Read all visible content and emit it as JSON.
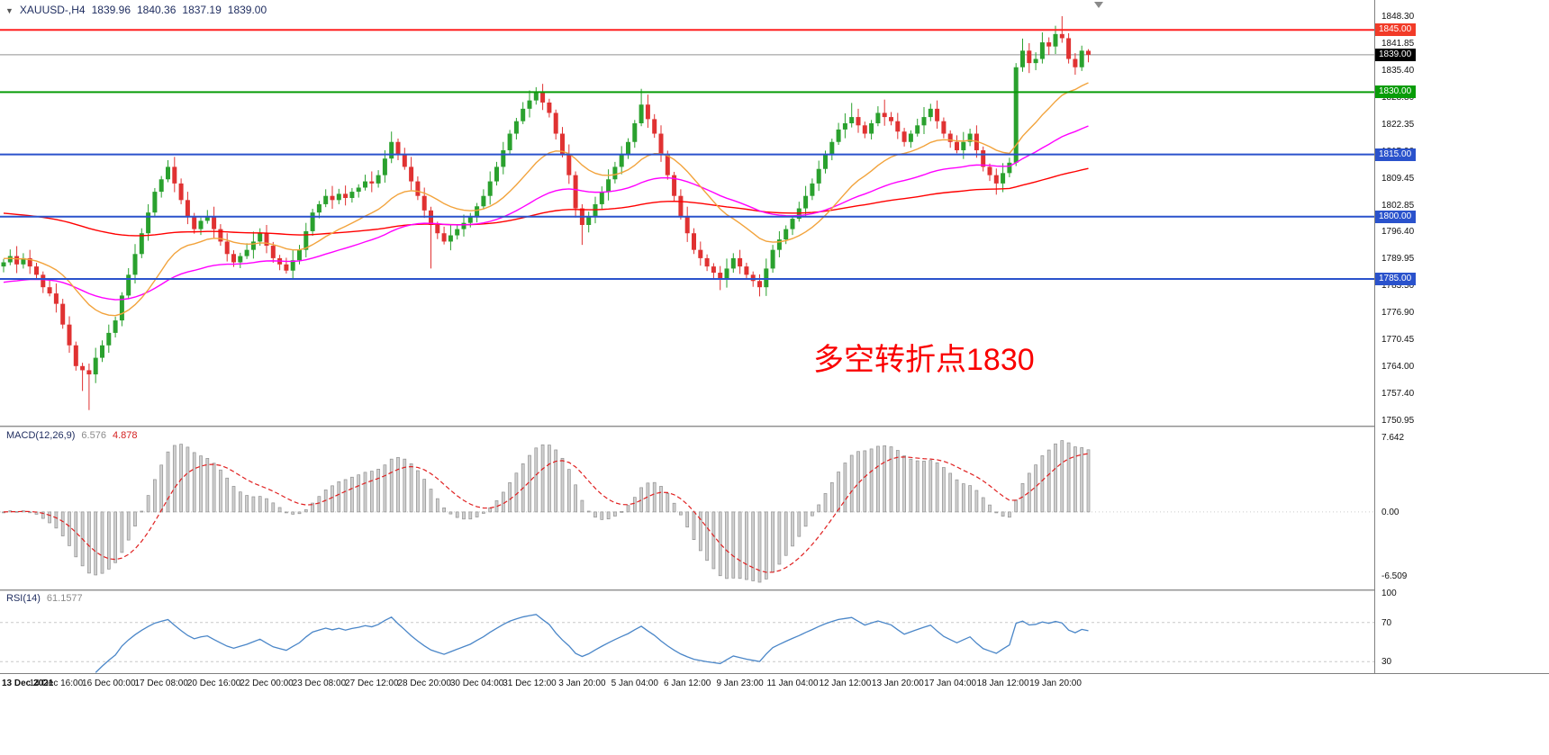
{
  "title": {
    "marker": "▼",
    "symbol": "XAUUSD-,H4",
    "open": "1839.96",
    "high": "1840.36",
    "low": "1837.19",
    "close": "1839.00"
  },
  "annotation": {
    "text": "多空转折点1830",
    "color": "#fa0000"
  },
  "current_price": {
    "value": 1839.0,
    "label": "1839.00",
    "badge_color": "#000000",
    "line_color": "#909090"
  },
  "levels": [
    {
      "price": 1845.0,
      "label": "1845.00",
      "line_color": "#ff2020",
      "badge_color": "#f23b28",
      "width": 2
    },
    {
      "price": 1830.0,
      "label": "1830.00",
      "line_color": "#089c08",
      "badge_color": "#089c08",
      "width": 2
    },
    {
      "price": 1815.0,
      "label": "1815.00",
      "line_color": "#2a52cc",
      "badge_color": "#2a52cc",
      "width": 2
    },
    {
      "price": 1800.0,
      "label": "1800.00",
      "line_color": "#2a52cc",
      "badge_color": "#2a52cc",
      "width": 2
    },
    {
      "price": 1785.0,
      "label": "1785.00",
      "line_color": "#2a52cc",
      "badge_color": "#2a52cc",
      "width": 2
    }
  ],
  "price_axis": {
    "ticks": [
      "1848.30",
      "1841.85",
      "1835.40",
      "1828.80",
      "1822.35",
      "1815.90",
      "1809.45",
      "1802.85",
      "1796.40",
      "1789.95",
      "1783.50",
      "1776.90",
      "1770.45",
      "1764.00",
      "1757.40",
      "1750.95"
    ]
  },
  "time_axis": {
    "labels": [
      "13 Dec 2021",
      "14 Dec 16:00",
      "16 Dec 00:00",
      "17 Dec 08:00",
      "20 Dec 16:00",
      "22 Dec 00:00",
      "23 Dec 08:00",
      "27 Dec 12:00",
      "28 Dec 20:00",
      "30 Dec 04:00",
      "31 Dec 12:00",
      "3 Jan 20:00",
      "5 Jan 04:00",
      "6 Jan 12:00",
      "9 Jan 23:00",
      "11 Jan 04:00",
      "12 Jan 12:00",
      "13 Jan 20:00",
      "17 Jan 04:00",
      "18 Jan 12:00",
      "19 Jan 20:00"
    ],
    "candles_per_label": 8
  },
  "indicators": {
    "macd": {
      "name": "MACD(12,26,9)",
      "value_main": "6.576",
      "value_signal": "4.878",
      "params": [
        12,
        26,
        9
      ],
      "axis_labels": [
        "7.642",
        "0.00",
        "-6.509"
      ],
      "axis_values": [
        7.642,
        0,
        -6.509
      ],
      "hist_color": "#d0d0d0",
      "hist_border": "#909090",
      "signal_color": "#e02020"
    },
    "rsi": {
      "name": "RSI(14)",
      "value": "61.1577",
      "period": 14,
      "axis_labels": [
        "100",
        "70",
        "30"
      ],
      "axis_values": [
        100,
        70,
        30
      ],
      "guide_levels": [
        70,
        30
      ],
      "line_color": "#4a86c8"
    }
  },
  "chart_data": {
    "type": "candlestick",
    "symbol": "XAUUSD",
    "timeframe": "H4",
    "ylim": [
      1750.95,
      1848.3
    ],
    "colors": {
      "up": "#2aa12e",
      "down": "#e03232"
    },
    "overlays": [
      {
        "name": "MA-fast",
        "period": 20,
        "seed": 1790,
        "color": "#f2a33c"
      },
      {
        "name": "MA-mid",
        "period": 55,
        "seed": 1784,
        "color": "#ff00ff"
      },
      {
        "name": "MA-slow",
        "period": 150,
        "seed": 1801,
        "color": "#ff0000"
      }
    ],
    "candles": [
      [
        1788,
        1789.8,
        1786.6,
        1789
      ],
      [
        1789,
        1792.1,
        1788.3,
        1790.5
      ],
      [
        1790.5,
        1792.9,
        1786.4,
        1788.5
      ],
      [
        1788.5,
        1791.2,
        1787.5,
        1790
      ],
      [
        1790,
        1792,
        1786.2,
        1788
      ],
      [
        1788,
        1788.9,
        1784.9,
        1786
      ],
      [
        1786,
        1786.8,
        1781.6,
        1783
      ],
      [
        1783,
        1784.6,
        1780.8,
        1781.5
      ],
      [
        1781.5,
        1783.9,
        1776.9,
        1779
      ],
      [
        1779,
        1780.2,
        1773,
        1774
      ],
      [
        1774,
        1776,
        1767.2,
        1769
      ],
      [
        1769,
        1769.9,
        1762.9,
        1764
      ],
      [
        1764,
        1764.8,
        1758,
        1763
      ],
      [
        1763,
        1764.6,
        1753.4,
        1762
      ],
      [
        1762,
        1768.4,
        1759.9,
        1766
      ],
      [
        1766,
        1770.2,
        1765,
        1769
      ],
      [
        1769,
        1774,
        1767.2,
        1772
      ],
      [
        1772,
        1775.9,
        1770.9,
        1775
      ],
      [
        1775,
        1781.8,
        1773.6,
        1781
      ],
      [
        1781,
        1787.6,
        1780.3,
        1786
      ],
      [
        1786,
        1793.4,
        1783.9,
        1791
      ],
      [
        1791,
        1797.2,
        1790,
        1796
      ],
      [
        1796,
        1803,
        1794.2,
        1801
      ],
      [
        1801,
        1806.9,
        1799.9,
        1806
      ],
      [
        1806,
        1809.8,
        1804.6,
        1809
      ],
      [
        1809,
        1813.6,
        1808.3,
        1812
      ],
      [
        1812,
        1814.4,
        1805.9,
        1808
      ],
      [
        1808,
        1809.2,
        1803,
        1804
      ],
      [
        1804,
        1806,
        1798.2,
        1800
      ],
      [
        1800,
        1800.9,
        1795.9,
        1797
      ],
      [
        1797,
        1799.8,
        1795.6,
        1799
      ],
      [
        1799,
        1801.6,
        1798.3,
        1800
      ],
      [
        1800,
        1802.4,
        1794.9,
        1797
      ],
      [
        1797,
        1798.2,
        1793,
        1794
      ],
      [
        1794,
        1796,
        1789.2,
        1791
      ],
      [
        1791,
        1791.9,
        1787.9,
        1789
      ],
      [
        1789,
        1791.3,
        1787.6,
        1790.5
      ],
      [
        1790.5,
        1793.6,
        1789.8,
        1792
      ],
      [
        1792,
        1796.4,
        1789.9,
        1794
      ],
      [
        1794,
        1797.2,
        1793,
        1796
      ],
      [
        1796,
        1798,
        1791.2,
        1793
      ],
      [
        1793,
        1793.9,
        1788.9,
        1790
      ],
      [
        1790,
        1790.8,
        1787.1,
        1788.5
      ],
      [
        1788.5,
        1790.1,
        1786.3,
        1787
      ],
      [
        1787,
        1791.9,
        1784.9,
        1789.5
      ],
      [
        1789.5,
        1793.2,
        1788.5,
        1792
      ],
      [
        1792,
        1798.5,
        1790.2,
        1796.5
      ],
      [
        1796.5,
        1801.9,
        1795.4,
        1801
      ],
      [
        1801,
        1803.8,
        1799.6,
        1803
      ],
      [
        1803,
        1806.6,
        1802.3,
        1805
      ],
      [
        1805,
        1807.4,
        1801.9,
        1804
      ],
      [
        1804,
        1806.7,
        1803,
        1805.5
      ],
      [
        1805.5,
        1807.5,
        1802.7,
        1804.5
      ],
      [
        1804.5,
        1806.9,
        1803.4,
        1806
      ],
      [
        1806,
        1807.8,
        1804.6,
        1807
      ],
      [
        1807,
        1810.1,
        1806.3,
        1808.5
      ],
      [
        1808.5,
        1810.9,
        1805.9,
        1808
      ],
      [
        1808,
        1811.2,
        1807,
        1810
      ],
      [
        1810,
        1816,
        1808.2,
        1814
      ],
      [
        1814,
        1820.5,
        1812.9,
        1818
      ],
      [
        1818,
        1818.8,
        1813.6,
        1815
      ],
      [
        1815,
        1816.6,
        1811.3,
        1812
      ],
      [
        1812,
        1814.4,
        1806.4,
        1808.5
      ],
      [
        1808.5,
        1809.7,
        1804,
        1805
      ],
      [
        1805,
        1807,
        1799.7,
        1801.5
      ],
      [
        1801.5,
        1802.4,
        1787.5,
        1798
      ],
      [
        1798,
        1798.8,
        1794.6,
        1796
      ],
      [
        1796,
        1797.6,
        1793.3,
        1794
      ],
      [
        1794,
        1797.9,
        1791.9,
        1795.5
      ],
      [
        1795.5,
        1798.2,
        1794.5,
        1797
      ],
      [
        1797,
        1800.5,
        1795.2,
        1798.5
      ],
      [
        1798.5,
        1800.9,
        1797.4,
        1800
      ],
      [
        1800,
        1803.3,
        1798.6,
        1802.5
      ],
      [
        1802.5,
        1806.6,
        1801.8,
        1805
      ],
      [
        1805,
        1810.9,
        1802.9,
        1808.5
      ],
      [
        1808.5,
        1813.2,
        1807.5,
        1812
      ],
      [
        1812,
        1818,
        1810.2,
        1816
      ],
      [
        1816,
        1820.9,
        1814.9,
        1820
      ],
      [
        1820,
        1823.8,
        1818.6,
        1823
      ],
      [
        1823,
        1827.6,
        1822.3,
        1826
      ],
      [
        1826,
        1830.4,
        1823.9,
        1828
      ],
      [
        1828,
        1831.2,
        1827,
        1830
      ],
      [
        1830,
        1832,
        1825.7,
        1827.5
      ],
      [
        1827.5,
        1828.4,
        1823.9,
        1825
      ],
      [
        1825,
        1825.8,
        1818.6,
        1820
      ],
      [
        1820,
        1821.6,
        1814.3,
        1815
      ],
      [
        1815,
        1817.4,
        1807.9,
        1810
      ],
      [
        1810,
        1810.9,
        1799.8,
        1802
      ],
      [
        1802,
        1803,
        1793.2,
        1798
      ],
      [
        1798,
        1801.2,
        1796.2,
        1800
      ],
      [
        1800,
        1804.8,
        1798.4,
        1803
      ],
      [
        1803,
        1807.3,
        1801.9,
        1806
      ],
      [
        1806,
        1811.4,
        1803.9,
        1809
      ],
      [
        1809,
        1813.2,
        1808,
        1812
      ],
      [
        1812,
        1817,
        1810.2,
        1815
      ],
      [
        1815,
        1818.9,
        1813.9,
        1818
      ],
      [
        1818,
        1823.3,
        1816.6,
        1822.5
      ],
      [
        1822.5,
        1830.8,
        1821.8,
        1827
      ],
      [
        1827,
        1829.4,
        1821.4,
        1823.5
      ],
      [
        1823.5,
        1824.7,
        1819,
        1820
      ],
      [
        1820,
        1822,
        1813.2,
        1815
      ],
      [
        1815,
        1815.9,
        1808.9,
        1810
      ],
      [
        1810,
        1810.8,
        1803.6,
        1805
      ],
      [
        1805,
        1806.6,
        1799.3,
        1800
      ],
      [
        1800,
        1802.4,
        1793.9,
        1796
      ],
      [
        1796,
        1797.2,
        1791,
        1792
      ],
      [
        1792,
        1794,
        1788.2,
        1790
      ],
      [
        1790,
        1790.9,
        1786.9,
        1788
      ],
      [
        1788,
        1788.8,
        1785.1,
        1786.5
      ],
      [
        1786.5,
        1788.1,
        1782.3,
        1785
      ],
      [
        1785,
        1789.9,
        1782.9,
        1787.5
      ],
      [
        1787.5,
        1791.2,
        1786.5,
        1790
      ],
      [
        1790,
        1792,
        1786.2,
        1788
      ],
      [
        1788,
        1788.9,
        1784.9,
        1786
      ],
      [
        1786,
        1786.8,
        1783.1,
        1784.5
      ],
      [
        1784.5,
        1786.1,
        1780.8,
        1783
      ],
      [
        1783,
        1789.9,
        1780.9,
        1787.5
      ],
      [
        1787.5,
        1793.2,
        1786.5,
        1792
      ],
      [
        1792,
        1796.5,
        1790.2,
        1794.5
      ],
      [
        1794.5,
        1797.9,
        1793.4,
        1797
      ],
      [
        1797,
        1800.3,
        1795.6,
        1799.5
      ],
      [
        1799.5,
        1803.6,
        1798.8,
        1802
      ],
      [
        1802,
        1807.4,
        1799.9,
        1805
      ],
      [
        1805,
        1809.2,
        1804,
        1808
      ],
      [
        1808,
        1813.5,
        1806.2,
        1811.5
      ],
      [
        1811.5,
        1815.9,
        1810.4,
        1815
      ],
      [
        1815,
        1818.8,
        1813.6,
        1818
      ],
      [
        1818,
        1822.6,
        1817.3,
        1821
      ],
      [
        1821,
        1824.9,
        1818.9,
        1822.5
      ],
      [
        1822.5,
        1827.4,
        1821.5,
        1824
      ],
      [
        1824,
        1826,
        1820.2,
        1822
      ],
      [
        1822,
        1822.9,
        1818.9,
        1820
      ],
      [
        1820,
        1823.3,
        1818.6,
        1822.5
      ],
      [
        1822.5,
        1826.6,
        1821.8,
        1825
      ],
      [
        1825,
        1828.2,
        1821.9,
        1824
      ],
      [
        1824,
        1825.2,
        1822,
        1823
      ],
      [
        1823,
        1825,
        1818.7,
        1820.5
      ],
      [
        1820.5,
        1821.4,
        1816.9,
        1818
      ],
      [
        1818,
        1820.8,
        1816.6,
        1820
      ],
      [
        1820,
        1823.6,
        1819.3,
        1822
      ],
      [
        1822,
        1826.4,
        1819.9,
        1824
      ],
      [
        1824,
        1827.2,
        1823,
        1826
      ],
      [
        1826,
        1828,
        1821.2,
        1823
      ],
      [
        1823,
        1823.9,
        1818.9,
        1820
      ],
      [
        1820,
        1820.8,
        1816.6,
        1818
      ],
      [
        1818,
        1819.6,
        1815.3,
        1816
      ],
      [
        1816,
        1820.4,
        1813.9,
        1818
      ],
      [
        1818,
        1821.2,
        1817,
        1820
      ],
      [
        1820,
        1822,
        1814.2,
        1816
      ],
      [
        1816,
        1816.9,
        1810.9,
        1812
      ],
      [
        1812,
        1812.8,
        1808.6,
        1810
      ],
      [
        1810,
        1811.6,
        1805.3,
        1808
      ],
      [
        1808,
        1812.9,
        1805.9,
        1810.5
      ],
      [
        1810.5,
        1814.2,
        1809.5,
        1813
      ],
      [
        1813,
        1837,
        1812.2,
        1836
      ],
      [
        1836,
        1842.9,
        1834.9,
        1840
      ],
      [
        1840,
        1841.8,
        1834.6,
        1837
      ],
      [
        1837,
        1839.6,
        1835.3,
        1838
      ],
      [
        1838,
        1844.4,
        1836.9,
        1842
      ],
      [
        1842,
        1843.2,
        1839,
        1841
      ],
      [
        1841,
        1846,
        1839.2,
        1844
      ],
      [
        1844,
        1848.3,
        1841.9,
        1843
      ],
      [
        1843,
        1844.2,
        1836.9,
        1838
      ],
      [
        1838,
        1839.4,
        1834.2,
        1836
      ],
      [
        1836,
        1841.2,
        1835.1,
        1840
      ],
      [
        1839.96,
        1840.36,
        1837.19,
        1839
      ]
    ]
  }
}
